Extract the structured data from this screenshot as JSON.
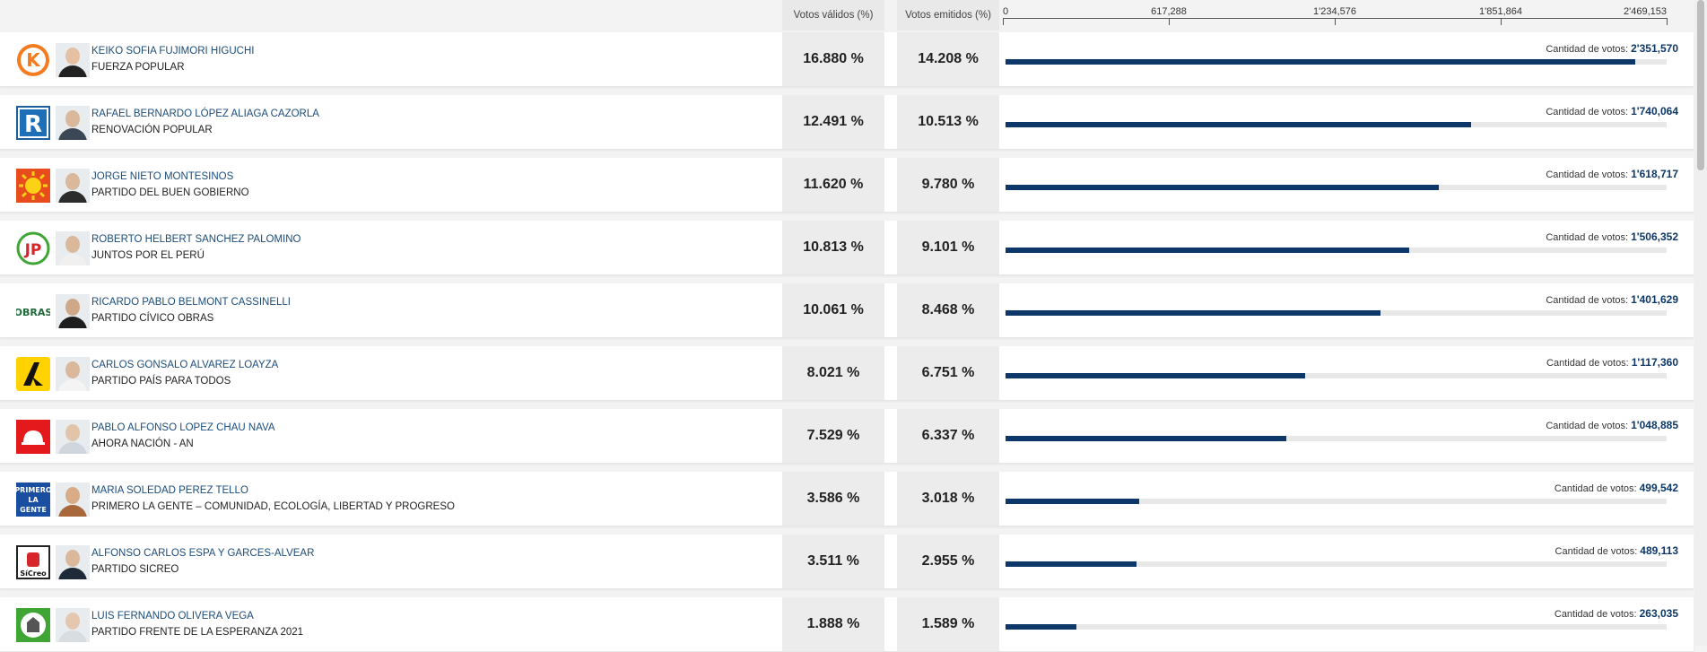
{
  "header": {
    "valid_label": "Votos válidos (%)",
    "emitted_label": "Votos emitidos (%)",
    "axis_ticks": [
      "0",
      "617,288",
      "1'234,576",
      "1'851,864",
      "2'469,153"
    ]
  },
  "axis_max": 2469153,
  "count_label": "Cantidad de votos:",
  "colors": {
    "bar": "#0c3768",
    "track": "#e8e8e8"
  },
  "rows": [
    {
      "name": "KEIKO SOFIA FUJIMORI HIGUCHI",
      "party": "FUERZA POPULAR",
      "valid": "16.880 %",
      "emitted": "14.208 %",
      "votes_display": "2'351,570",
      "votes": 2351570,
      "logo_icon": "fuerza-popular-logo-icon",
      "logo_text": "K"
    },
    {
      "name": "RAFAEL BERNARDO LÓPEZ ALIAGA CAZORLA",
      "party": "RENOVACIÓN POPULAR",
      "valid": "12.491 %",
      "emitted": "10.513 %",
      "votes_display": "1'740,064",
      "votes": 1740064,
      "logo_icon": "renovacion-popular-logo-icon",
      "logo_text": "R"
    },
    {
      "name": "JORGE NIETO MONTESINOS",
      "party": "PARTIDO DEL BUEN GOBIERNO",
      "valid": "11.620 %",
      "emitted": "9.780 %",
      "votes_display": "1'618,717",
      "votes": 1618717,
      "logo_icon": "sun-logo-icon",
      "logo_text": ""
    },
    {
      "name": "ROBERTO HELBERT SANCHEZ PALOMINO",
      "party": "JUNTOS POR EL PERÚ",
      "valid": "10.813 %",
      "emitted": "9.101 %",
      "votes_display": "1'506,352",
      "votes": 1506352,
      "logo_icon": "juntos-por-el-peru-logo-icon",
      "logo_text": "JP"
    },
    {
      "name": "RICARDO PABLO BELMONT CASSINELLI",
      "party": "PARTIDO CÍVICO OBRAS",
      "valid": "10.061 %",
      "emitted": "8.468 %",
      "votes_display": "1'401,629",
      "votes": 1401629,
      "logo_icon": "obras-logo-icon",
      "logo_text": "OBRAS"
    },
    {
      "name": "CARLOS GONSALO ALVAREZ LOAYZA",
      "party": "PARTIDO PAÍS PARA TODOS",
      "valid": "8.021 %",
      "emitted": "6.751 %",
      "votes_display": "1'117,360",
      "votes": 1117360,
      "logo_icon": "pais-para-todos-logo-icon",
      "logo_text": ""
    },
    {
      "name": "PABLO ALFONSO LOPEZ CHAU NAVA",
      "party": "AHORA NACIÓN - AN",
      "valid": "7.529 %",
      "emitted": "6.337 %",
      "votes_display": "1'048,885",
      "votes": 1048885,
      "logo_icon": "helmet-logo-icon",
      "logo_text": ""
    },
    {
      "name": "MARIA SOLEDAD PEREZ TELLO",
      "party": "PRIMERO LA GENTE – COMUNIDAD, ECOLOGÍA, LIBERTAD Y PROGRESO",
      "valid": "3.586 %",
      "emitted": "3.018 %",
      "votes_display": "499,542",
      "votes": 499542,
      "logo_icon": "primero-la-gente-logo-icon",
      "logo_text": "PRIMERO LA GENTE"
    },
    {
      "name": "ALFONSO CARLOS ESPA Y GARCES-ALVEAR",
      "party": "PARTIDO SICREO",
      "valid": "3.511 %",
      "emitted": "2.955 %",
      "votes_display": "489,113",
      "votes": 489113,
      "logo_icon": "sicreo-logo-icon",
      "logo_text": "SíCreo"
    },
    {
      "name": "LUIS FERNANDO OLIVERA VEGA",
      "party": "PARTIDO FRENTE DE LA ESPERANZA 2021",
      "valid": "1.888 %",
      "emitted": "1.589 %",
      "votes_display": "263,035",
      "votes": 263035,
      "logo_icon": "frente-esperanza-logo-icon",
      "logo_text": ""
    }
  ]
}
